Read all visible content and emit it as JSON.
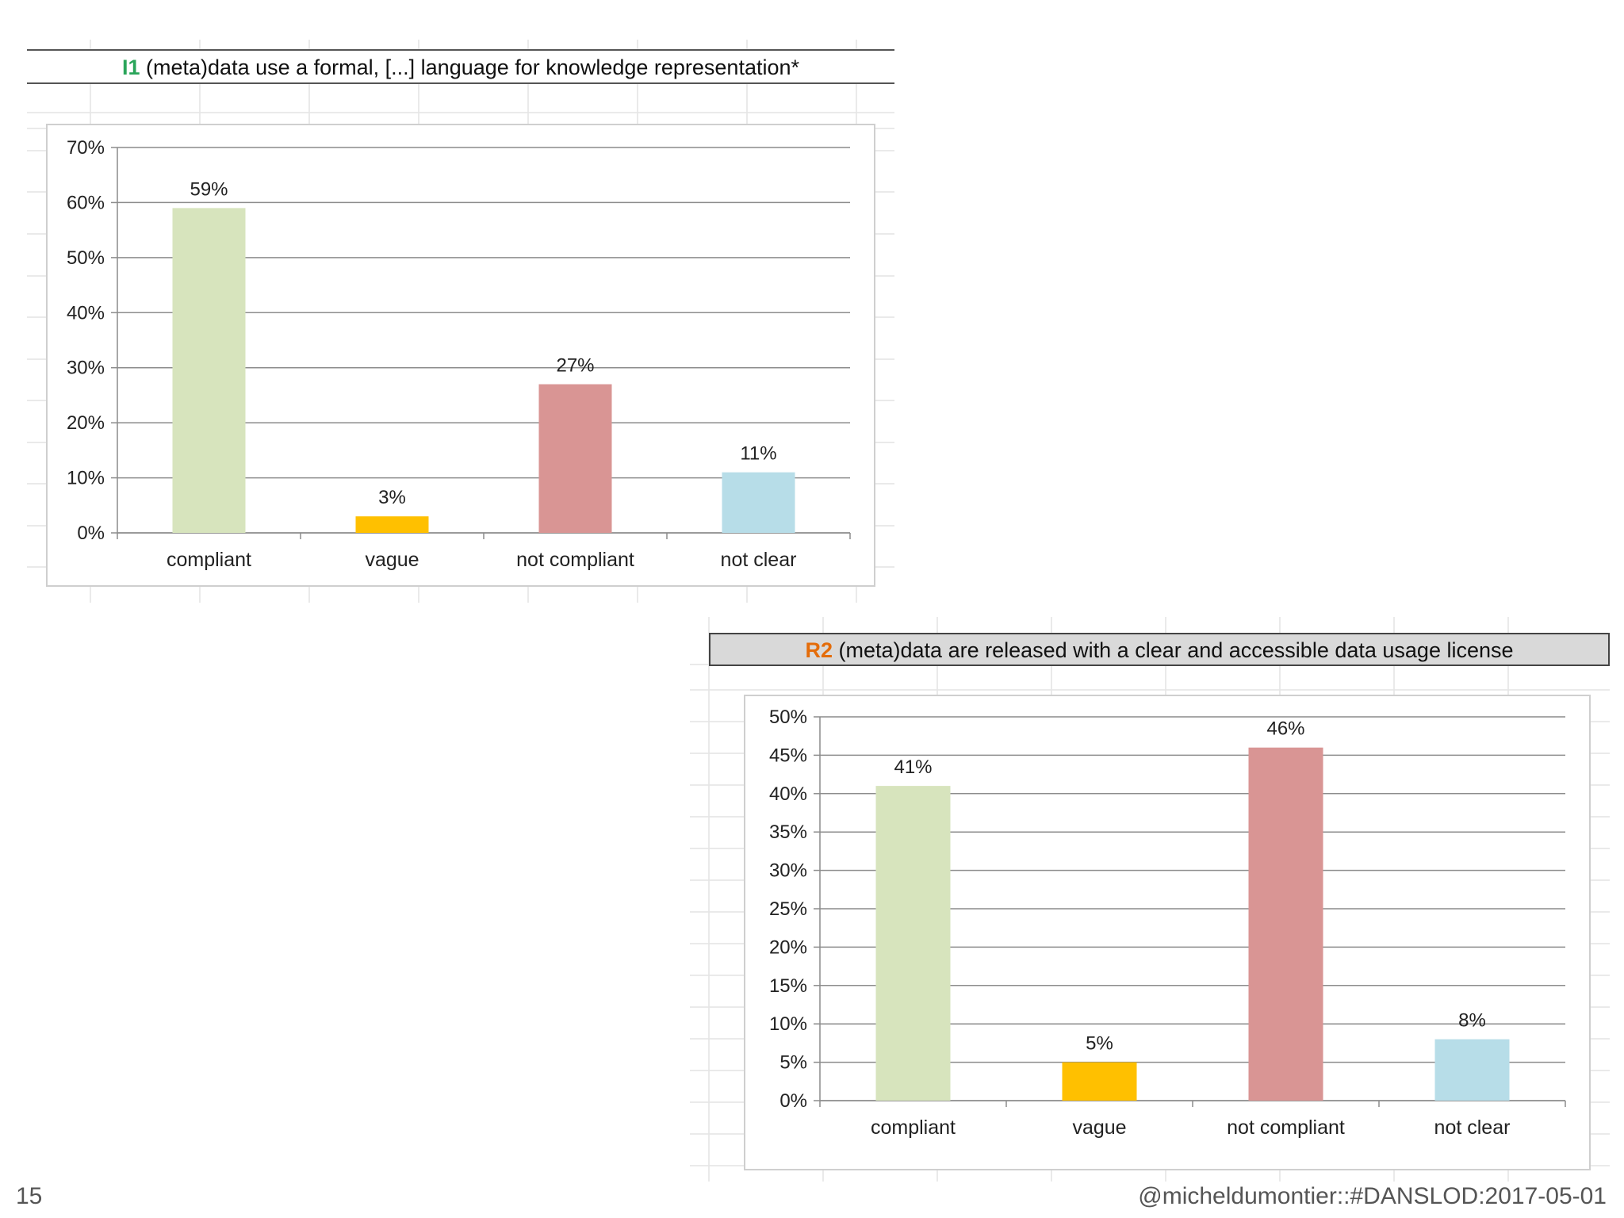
{
  "chart_data": [
    {
      "type": "bar",
      "code": "I1",
      "code_color": "#2aa55a",
      "title": "(meta)data use a formal, [...] language for knowledge representation*",
      "categories": [
        "compliant",
        "vague",
        "not compliant",
        "not clear"
      ],
      "values": [
        59,
        3,
        27,
        11
      ],
      "data_labels": [
        "59%",
        "3%",
        "27%",
        "11%"
      ],
      "colors": [
        "#d7e4bd",
        "#ffc000",
        "#d99594",
        "#b7dde8"
      ],
      "ylim": [
        0,
        70
      ],
      "yticks": [
        0,
        10,
        20,
        30,
        40,
        50,
        60,
        70
      ],
      "ytick_labels": [
        "0%",
        "10%",
        "20%",
        "30%",
        "40%",
        "50%",
        "60%",
        "70%"
      ],
      "grid": true
    },
    {
      "type": "bar",
      "code": "R2",
      "code_color": "#e46c0a",
      "title": "(meta)data are released with a clear and accessible data usage license",
      "categories": [
        "compliant",
        "vague",
        "not compliant",
        "not clear"
      ],
      "values": [
        41,
        5,
        46,
        8
      ],
      "data_labels": [
        "41%",
        "5%",
        "46%",
        "8%"
      ],
      "colors": [
        "#d7e4bd",
        "#ffc000",
        "#d99594",
        "#b7dde8"
      ],
      "ylim": [
        0,
        50
      ],
      "yticks": [
        0,
        5,
        10,
        15,
        20,
        25,
        30,
        35,
        40,
        45,
        50
      ],
      "ytick_labels": [
        "0%",
        "5%",
        "10%",
        "15%",
        "20%",
        "25%",
        "30%",
        "35%",
        "40%",
        "45%",
        "50%"
      ],
      "grid": true
    }
  ],
  "footer": {
    "slide_number": "15",
    "credit": "@micheldumontier::#DANSLOD:2017-05-01"
  }
}
